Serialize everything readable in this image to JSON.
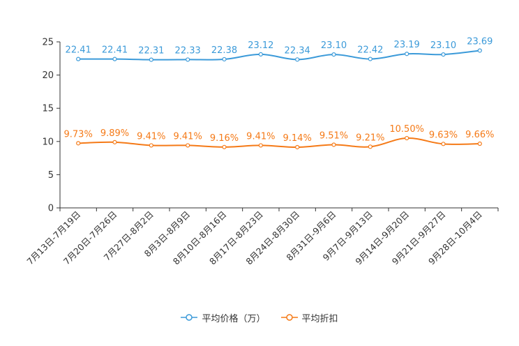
{
  "chart_data": {
    "type": "line",
    "categories": [
      "7月13日-7月19日",
      "7月20日-7月26日",
      "7月27日-8月2日",
      "8月3日-8月9日",
      "8月10日-8月16日",
      "8月17日-8月23日",
      "8月24日-8月30日",
      "8月31日-9月6日",
      "9月7日-9月13日",
      "9月14日-9月20日",
      "9月21日-9月27日",
      "9月28日-10月4日"
    ],
    "series": [
      {
        "name": "平均价格（万）",
        "color": "#3b9ad9",
        "values": [
          22.41,
          22.41,
          22.31,
          22.33,
          22.38,
          23.12,
          22.34,
          23.1,
          22.42,
          23.19,
          23.1,
          23.69
        ],
        "labels": [
          "22.41",
          "22.41",
          "22.31",
          "22.33",
          "22.38",
          "23.12",
          "22.34",
          "23.10",
          "22.42",
          "23.19",
          "23.10",
          "23.69"
        ]
      },
      {
        "name": "平均折扣",
        "color": "#f57a17",
        "values": [
          9.73,
          9.89,
          9.41,
          9.41,
          9.16,
          9.41,
          9.14,
          9.51,
          9.21,
          10.5,
          9.63,
          9.66
        ],
        "labels": [
          "9.73%",
          "9.89%",
          "9.41%",
          "9.41%",
          "9.16%",
          "9.41%",
          "9.14%",
          "9.51%",
          "9.21%",
          "10.50%",
          "9.63%",
          "9.66%"
        ]
      }
    ],
    "yticks": [
      "0",
      "5",
      "10",
      "15",
      "20",
      "25"
    ],
    "ylim": [
      0,
      25
    ],
    "title": "",
    "xlabel": "",
    "ylabel": "",
    "legend_position": "bottom-center"
  }
}
